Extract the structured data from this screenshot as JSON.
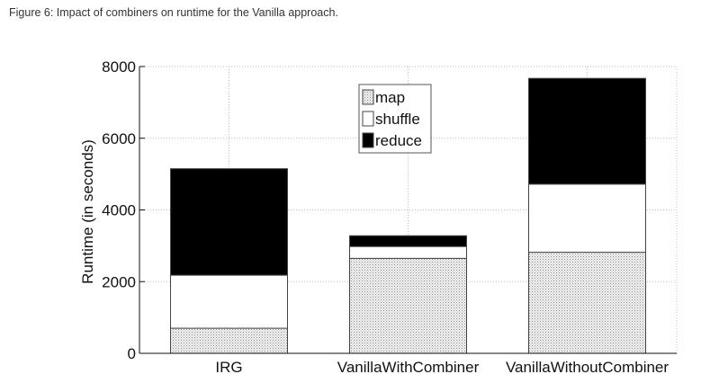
{
  "caption": "Figure 6: Impact of combiners on runtime for the Vanilla approach.",
  "chart_data": {
    "type": "bar",
    "stacked": true,
    "categories": [
      "IRG",
      "VanillaWithCombiner",
      "VanillaWithoutCombiner"
    ],
    "series": [
      {
        "name": "map",
        "values": [
          700,
          2650,
          2820
        ],
        "pattern": "dotted-gray"
      },
      {
        "name": "shuffle",
        "values": [
          1480,
          330,
          1900
        ],
        "color": "#ffffff"
      },
      {
        "name": "reduce",
        "values": [
          2970,
          300,
          2950
        ],
        "color": "#000000"
      }
    ],
    "ylabel": "Runtime (in seconds)",
    "xlabel": "",
    "ylim": [
      0,
      8000
    ],
    "yticks": [
      0,
      2000,
      4000,
      6000,
      8000
    ],
    "grid": true,
    "legend_position": "top-center"
  }
}
